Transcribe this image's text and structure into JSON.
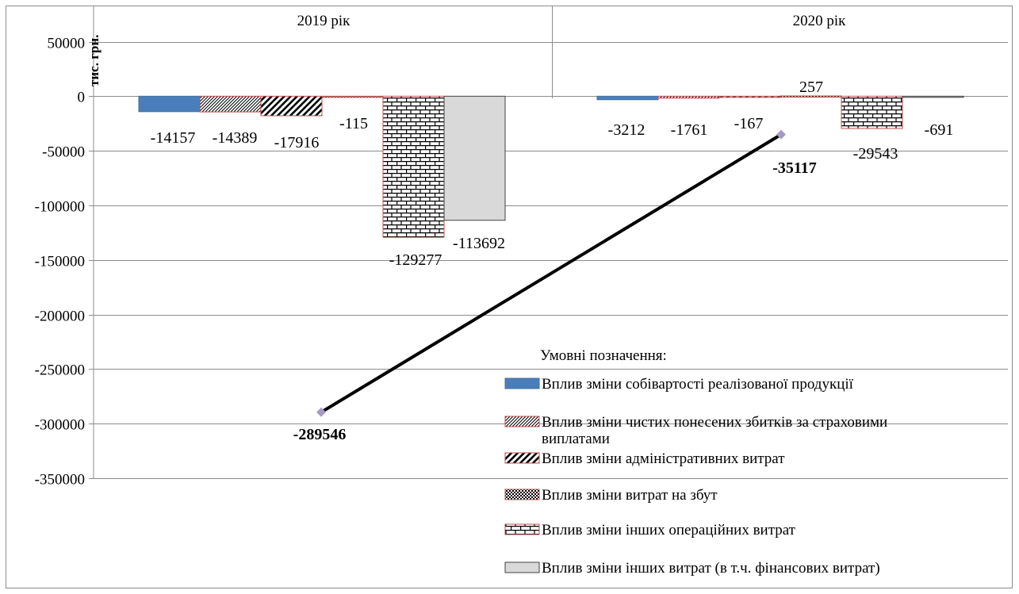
{
  "chart_data": {
    "type": "bar",
    "categories": [
      "2019 рік",
      "2020 рік"
    ],
    "ylabel": "тис. грн.",
    "ylim": [
      -350000,
      50000
    ],
    "ytick_step": 50000,
    "ytick_labels": [
      "50000",
      "0",
      "-50000",
      "-100000",
      "-150000",
      "-200000",
      "-250000",
      "-300000",
      "-350000"
    ],
    "grid": true,
    "legend_title": "Умовні позначення:",
    "legend_position": "bottom-right",
    "series": [
      {
        "name": "Вплив зміни собівартості реалізованої продукції",
        "values": [
          -14157,
          -3212
        ],
        "labels": [
          "-14157",
          "-3212"
        ],
        "pattern": "solid",
        "color": "#4a7ebb"
      },
      {
        "name": "Вплив зміни чистих понесених збитків за страховими виплатами",
        "values": [
          -14389,
          -1761
        ],
        "labels": [
          "-14389",
          "-1761"
        ],
        "pattern": "diagonal-fine",
        "color": "#c0504d"
      },
      {
        "name": "Вплив зміни адміністративних витрат",
        "values": [
          -17916,
          -167
        ],
        "labels": [
          "-17916",
          "-167"
        ],
        "pattern": "diagonal-wide",
        "color": "#c0504d"
      },
      {
        "name": "Вплив зміни витрат на збут",
        "values": [
          -115,
          257
        ],
        "labels": [
          "-115",
          "257"
        ],
        "pattern": "checker",
        "color": "#c0504d"
      },
      {
        "name": "Вплив зміни інших операційних витрат",
        "values": [
          -129277,
          -29543
        ],
        "labels": [
          "-129277",
          "-29543"
        ],
        "pattern": "brick",
        "color": "#c0504d"
      },
      {
        "name": "Вплив зміни інших витрат (в т.ч. фінансових витрат)",
        "values": [
          -113692,
          -691
        ],
        "labels": [
          "-113692",
          "-691"
        ],
        "pattern": "solid",
        "color": "#d9d9d9"
      }
    ],
    "line_series": {
      "values": [
        -289546,
        -35117
      ],
      "labels": [
        "-289546",
        "-35117"
      ],
      "line_color": "#000000",
      "marker_color": "#a59bc4"
    }
  }
}
